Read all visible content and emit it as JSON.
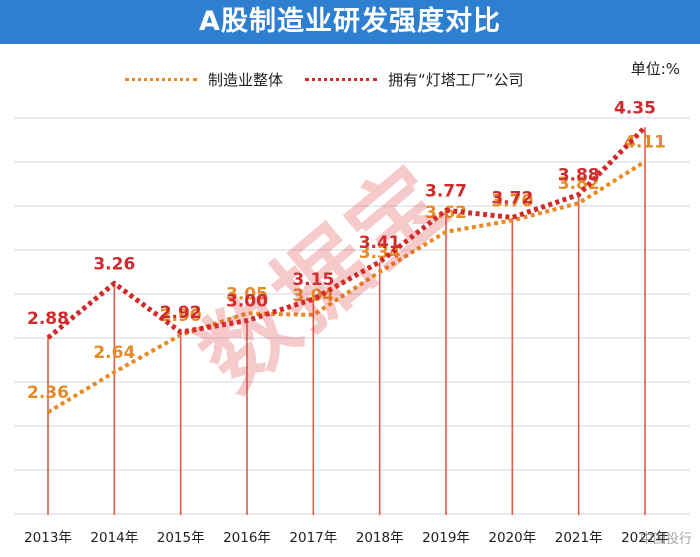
{
  "chart_data": {
    "type": "line",
    "title": "A股制造业研发强度对比",
    "unit_label": "单位:%",
    "categories": [
      "2013年",
      "2014年",
      "2015年",
      "2016年",
      "2017年",
      "2018年",
      "2019年",
      "2020年",
      "2021年",
      "2022年"
    ],
    "series": [
      {
        "name": "制造业整体",
        "color": "#e58a25",
        "values": [
          2.36,
          2.64,
          2.9,
          3.05,
          3.04,
          3.34,
          3.62,
          3.7,
          3.82,
          4.11
        ],
        "value_labels": [
          "2.36",
          "2.64",
          "2.90",
          "3.05",
          "3.04",
          "3.34",
          "3.62",
          "3.70",
          "3.82",
          "4.11"
        ]
      },
      {
        "name": "拥有“灯塔工厂”公司",
        "color": "#d12a2a",
        "values": [
          2.88,
          3.26,
          2.92,
          3.0,
          3.15,
          3.41,
          3.77,
          3.72,
          3.88,
          4.35
        ],
        "value_labels": [
          "2.88",
          "3.26",
          "2.92",
          "3.00",
          "3.15",
          "3.41",
          "3.77",
          "3.72",
          "3.88",
          "4.35"
        ]
      }
    ],
    "grid": true,
    "legend_position": "top-left",
    "watermark": "数据宝",
    "corner_mark": "中国投行"
  },
  "colors": {
    "title_bar": "#2e7fd0",
    "drop_line": "#e15a4a",
    "grid": "#cfd8e3"
  }
}
